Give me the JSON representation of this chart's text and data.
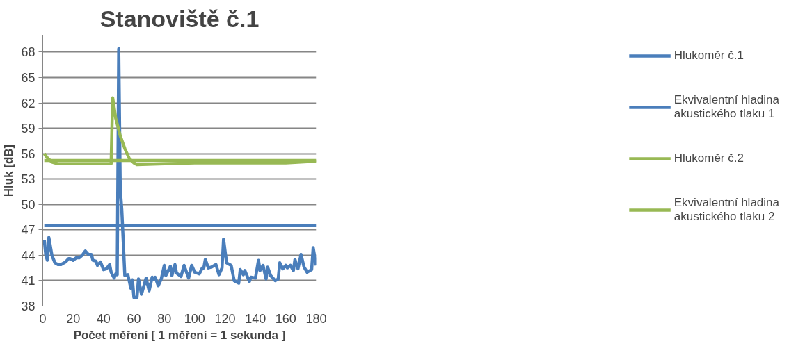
{
  "chart_data": {
    "type": "line",
    "title": "Stanoviště č.1",
    "xlabel": "Počet měření [ 1 měření = 1 sekunda ]",
    "ylabel": "Hluk [dB]",
    "xlim": [
      0,
      180
    ],
    "xticks": [
      0,
      20,
      40,
      60,
      80,
      100,
      120,
      140,
      160,
      180
    ],
    "ylim": [
      38,
      70
    ],
    "yticks": [
      38,
      41,
      44,
      47,
      50,
      53,
      56,
      59,
      62,
      65,
      68
    ],
    "grid": "y",
    "legend": "right",
    "marker": "none",
    "line_style": "solid",
    "series": [
      {
        "name": "Hlukoměr č.1",
        "color": "#4a7ebb",
        "x": [
          1,
          2,
          3,
          4,
          6,
          8,
          10,
          12,
          15,
          17,
          18,
          20,
          22,
          24,
          26,
          28,
          30,
          32,
          33,
          35,
          36,
          38,
          40,
          42,
          44,
          45,
          47,
          48,
          49,
          50,
          51,
          52,
          54,
          56,
          58,
          59,
          60,
          62,
          63,
          65,
          68,
          70,
          72,
          73,
          74,
          76,
          78,
          80,
          81,
          84,
          85,
          87,
          88,
          91,
          93,
          96,
          98,
          100,
          103,
          105,
          106,
          107,
          109,
          111,
          114,
          116,
          118,
          119,
          121,
          124,
          126,
          129,
          130,
          132,
          133,
          136,
          137,
          140,
          142,
          143,
          145,
          147,
          148,
          150,
          153,
          155,
          156,
          158,
          160,
          161,
          163,
          165,
          166,
          168,
          170,
          172,
          174,
          177,
          178,
          180
        ],
        "values": [
          45.8,
          44.0,
          43.4,
          46.1,
          44.0,
          43.1,
          42.9,
          42.9,
          43.2,
          43.6,
          43.6,
          43.4,
          43.7,
          43.7,
          44.0,
          44.5,
          44.1,
          44.1,
          43.4,
          43.3,
          42.8,
          43.2,
          42.3,
          42.4,
          42.9,
          42.0,
          41.3,
          41.8,
          41.7,
          68.4,
          51.8,
          49.4,
          41.6,
          41.7,
          40.1,
          41.1,
          39.0,
          39.0,
          41.2,
          39.4,
          41.3,
          39.8,
          41.4,
          41.2,
          41.4,
          40.4,
          41.2,
          42.8,
          41.6,
          42.7,
          41.6,
          42.9,
          41.9,
          41.5,
          42.8,
          41.3,
          42.8,
          42.0,
          41.8,
          42.5,
          42.5,
          43.5,
          42.5,
          42.6,
          42.9,
          41.7,
          42.5,
          45.9,
          43.1,
          42.8,
          41.0,
          40.7,
          42.3,
          41.7,
          42.2,
          40.9,
          41.4,
          41.3,
          43.4,
          42.2,
          42.8,
          41.2,
          42.6,
          41.6,
          41.0,
          41.2,
          43.1,
          42.4,
          42.8,
          42.5,
          42.8,
          42.2,
          43.5,
          42.4,
          44.1,
          42.6,
          42.0,
          42.3,
          44.9,
          42.8
        ]
      },
      {
        "name": "Ekvivalentní hladina akustického tlaku 1",
        "color": "#4a7ebb",
        "x": [
          1,
          180
        ],
        "values": [
          47.5,
          47.5
        ]
      },
      {
        "name": "Hlukoměr č.2",
        "color": "#98b954",
        "x": [
          1,
          3,
          6,
          10,
          20,
          30,
          40,
          45,
          46,
          48,
          51,
          54,
          57,
          60,
          62,
          80,
          100,
          120,
          140,
          160,
          180
        ],
        "values": [
          56.0,
          55.5,
          55.0,
          54.8,
          54.8,
          54.8,
          54.8,
          54.8,
          62.6,
          60.2,
          58.1,
          56.6,
          55.4,
          54.9,
          54.7,
          54.8,
          54.9,
          54.9,
          54.9,
          54.9,
          55.1
        ]
      },
      {
        "name": "Ekvivalentní hladina akustického tlaku 2",
        "color": "#98b954",
        "x": [
          1,
          180
        ],
        "values": [
          55.2,
          55.2
        ]
      }
    ]
  }
}
